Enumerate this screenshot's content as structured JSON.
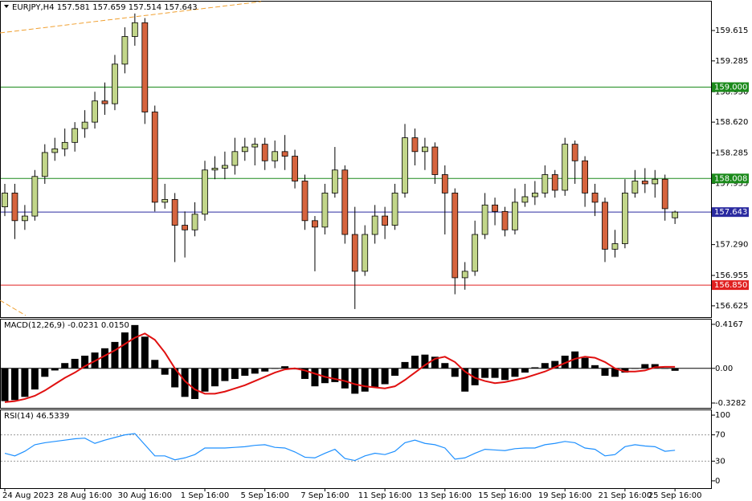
{
  "chart_data": [
    {
      "type": "candlestick",
      "title": "EURJPY,H4  157.581 157.659 157.514 157.643",
      "categories": [
        "24 Aug 2023",
        null,
        null,
        null,
        null,
        null,
        null,
        null,
        "28 Aug 16:00",
        null,
        null,
        null,
        null,
        null,
        "30 Aug 16:00",
        null,
        null,
        null,
        null,
        null,
        "1 Sep 16:00",
        null,
        null,
        null,
        null,
        null,
        "5 Sep 16:00",
        null,
        null,
        null,
        null,
        null,
        "7 Sep 16:00",
        null,
        null,
        null,
        null,
        null,
        "11 Sep 16:00",
        null,
        null,
        null,
        null,
        null,
        "13 Sep 16:00",
        null,
        null,
        null,
        null,
        null,
        "15 Sep 16:00",
        null,
        null,
        null,
        null,
        null,
        "19 Sep 16:00",
        null,
        null,
        null,
        null,
        null,
        "21 Sep 16:00",
        null,
        null,
        null,
        null,
        "25 Sep 16:00"
      ],
      "open": [
        157.7,
        157.85,
        157.55,
        157.6,
        158.03,
        158.29,
        158.33,
        158.4,
        158.55,
        158.62,
        158.85,
        158.82,
        159.25,
        159.55,
        159.7,
        158.73,
        157.75,
        157.78,
        157.5,
        157.45,
        157.62,
        158.1,
        158.12,
        158.15,
        158.3,
        158.35,
        158.38,
        158.2,
        158.3,
        158.25,
        157.98,
        157.55,
        157.48,
        157.85,
        158.1,
        157.4,
        157.0,
        157.4,
        157.6,
        157.5,
        157.85,
        158.45,
        158.3,
        158.35,
        158.05,
        157.85,
        156.93,
        157.0,
        157.4,
        157.72,
        157.65,
        157.45,
        157.75,
        157.81,
        157.85,
        158.05,
        157.88,
        158.38,
        158.2,
        157.85,
        157.75,
        157.24,
        157.3,
        157.85,
        157.98,
        157.95,
        158.0,
        157.581
      ],
      "high": [
        157.95,
        157.95,
        157.72,
        158.1,
        158.38,
        158.45,
        158.55,
        158.62,
        158.75,
        158.95,
        159.05,
        159.35,
        159.65,
        159.8,
        159.75,
        158.8,
        157.95,
        157.85,
        157.65,
        157.75,
        158.2,
        158.25,
        158.3,
        158.45,
        158.45,
        158.45,
        158.45,
        158.42,
        158.48,
        158.32,
        158.05,
        157.6,
        157.95,
        158.35,
        158.15,
        157.7,
        157.5,
        157.72,
        157.7,
        157.95,
        158.6,
        158.55,
        158.45,
        158.4,
        158.15,
        157.9,
        157.1,
        157.55,
        157.85,
        157.8,
        157.7,
        157.9,
        157.95,
        157.98,
        158.15,
        158.1,
        158.45,
        158.42,
        158.25,
        157.95,
        157.8,
        157.45,
        158.0,
        158.1,
        158.12,
        158.1,
        158.05,
        157.659
      ],
      "low": [
        157.6,
        157.35,
        157.45,
        157.55,
        157.95,
        158.2,
        158.25,
        158.3,
        158.45,
        158.55,
        158.7,
        158.75,
        159.15,
        159.45,
        158.6,
        157.65,
        157.68,
        157.1,
        157.15,
        157.38,
        157.55,
        158.0,
        158.0,
        158.05,
        158.2,
        158.15,
        158.1,
        158.12,
        158.1,
        157.9,
        157.45,
        157.0,
        157.4,
        157.8,
        157.3,
        156.59,
        156.95,
        157.3,
        157.35,
        157.45,
        157.8,
        158.15,
        158.1,
        157.95,
        157.4,
        156.75,
        156.8,
        156.95,
        157.35,
        157.5,
        157.38,
        157.4,
        157.7,
        157.72,
        157.8,
        157.8,
        157.82,
        157.95,
        157.7,
        157.6,
        157.1,
        157.15,
        157.25,
        157.8,
        157.85,
        157.8,
        157.55,
        157.514
      ],
      "close": [
        157.85,
        157.55,
        157.6,
        158.03,
        158.29,
        158.33,
        158.4,
        158.55,
        158.62,
        158.85,
        158.82,
        159.25,
        159.55,
        159.7,
        158.73,
        157.75,
        157.78,
        157.5,
        157.45,
        157.62,
        158.1,
        158.12,
        158.15,
        158.3,
        158.35,
        158.38,
        158.2,
        158.3,
        158.25,
        157.98,
        157.55,
        157.48,
        157.85,
        158.1,
        157.4,
        157.0,
        157.4,
        157.6,
        157.5,
        157.85,
        158.45,
        158.3,
        158.35,
        158.05,
        157.85,
        156.93,
        157.0,
        157.4,
        157.72,
        157.65,
        157.45,
        157.75,
        157.81,
        157.85,
        158.05,
        157.88,
        158.38,
        158.2,
        157.85,
        157.75,
        157.24,
        157.3,
        157.85,
        157.98,
        157.95,
        158.0,
        157.68,
        157.643
      ],
      "up_color": "#c2d68a",
      "down_color": "#d6643e",
      "ylim": [
        156.502,
        159.929
      ],
      "yticks": [
        159.615,
        159.285,
        {
          "value": 158.95,
          "label": "158.950"
        },
        {
          "value": 158.62,
          "label": "158.620"
        },
        158.285,
        157.955,
        {
          "value": 157.29,
          "label": "157.290"
        },
        156.955,
        156.625
      ],
      "hlines": [
        {
          "value": 159.0,
          "label": "159.000",
          "color": "#1b8a1b"
        },
        {
          "value": 158.008,
          "label": "158.008",
          "color": "#1b8a1b"
        },
        {
          "value": 157.643,
          "label": "157.643",
          "color": "#2a2aa0"
        },
        {
          "value": 156.85,
          "label": "156.850",
          "color": "#e02020"
        }
      ]
    },
    {
      "type": "macd",
      "title": "MACD(12,26,9) -0.0231 0.0150",
      "histogram": {
        "color": "#000000",
        "values": [
          -0.31,
          -0.3,
          -0.27,
          -0.2,
          -0.08,
          -0.02,
          0.05,
          0.09,
          0.12,
          0.15,
          0.19,
          0.25,
          0.34,
          0.41,
          0.3,
          0.08,
          -0.06,
          -0.18,
          -0.27,
          -0.29,
          -0.22,
          -0.17,
          -0.12,
          -0.1,
          -0.07,
          -0.05,
          -0.03,
          0.0,
          0.02,
          -0.01,
          -0.1,
          -0.17,
          -0.14,
          -0.13,
          -0.19,
          -0.24,
          -0.22,
          -0.18,
          -0.15,
          -0.07,
          0.06,
          0.12,
          0.13,
          0.11,
          0.05,
          -0.08,
          -0.22,
          -0.16,
          -0.09,
          -0.09,
          -0.11,
          -0.08,
          -0.04,
          0.01,
          0.05,
          0.07,
          0.12,
          0.16,
          0.1,
          0.03,
          -0.07,
          -0.08,
          -0.04,
          0.0,
          0.04,
          0.04,
          0.0,
          -0.0231
        ]
      },
      "signal": {
        "color": "#e01010",
        "values": [
          -0.32,
          -0.31,
          -0.29,
          -0.26,
          -0.21,
          -0.15,
          -0.09,
          -0.04,
          0.02,
          0.07,
          0.12,
          0.17,
          0.23,
          0.29,
          0.33,
          0.27,
          0.15,
          0.0,
          -0.12,
          -0.2,
          -0.24,
          -0.24,
          -0.22,
          -0.19,
          -0.16,
          -0.12,
          -0.08,
          -0.04,
          -0.01,
          0.0,
          -0.02,
          -0.05,
          -0.08,
          -0.1,
          -0.12,
          -0.15,
          -0.17,
          -0.18,
          -0.19,
          -0.17,
          -0.11,
          -0.04,
          0.03,
          0.09,
          0.11,
          0.06,
          -0.03,
          -0.09,
          -0.12,
          -0.14,
          -0.13,
          -0.11,
          -0.09,
          -0.06,
          -0.03,
          0.01,
          0.05,
          0.09,
          0.11,
          0.1,
          0.06,
          0.0,
          -0.03,
          -0.03,
          -0.02,
          0.01,
          0.015,
          0.015
        ]
      },
      "ylim": [
        -0.374,
        0.462
      ],
      "yticks": [
        0.4167,
        {
          "value": 0,
          "label": "0.00"
        },
        -0.3282
      ]
    },
    {
      "type": "line",
      "title": "RSI(14) 46.5339",
      "color": "#1e90ff",
      "values": [
        42,
        38,
        45,
        55,
        58,
        60,
        62,
        64,
        65,
        57,
        62,
        66,
        70,
        72,
        55,
        38,
        38,
        32,
        35,
        40,
        50,
        50,
        50,
        51,
        52,
        54,
        55,
        51,
        50,
        44,
        36,
        35,
        42,
        48,
        34,
        31,
        38,
        42,
        40,
        45,
        58,
        62,
        57,
        55,
        50,
        33,
        35,
        42,
        48,
        47,
        46,
        49,
        50,
        50,
        55,
        57,
        60,
        58,
        50,
        48,
        38,
        40,
        52,
        55,
        53,
        52,
        45,
        46.5339
      ],
      "ylim": [
        -11.1,
        107.4
      ],
      "yticks": [
        100,
        70,
        30,
        0
      ],
      "levels": [
        70,
        30
      ]
    }
  ]
}
